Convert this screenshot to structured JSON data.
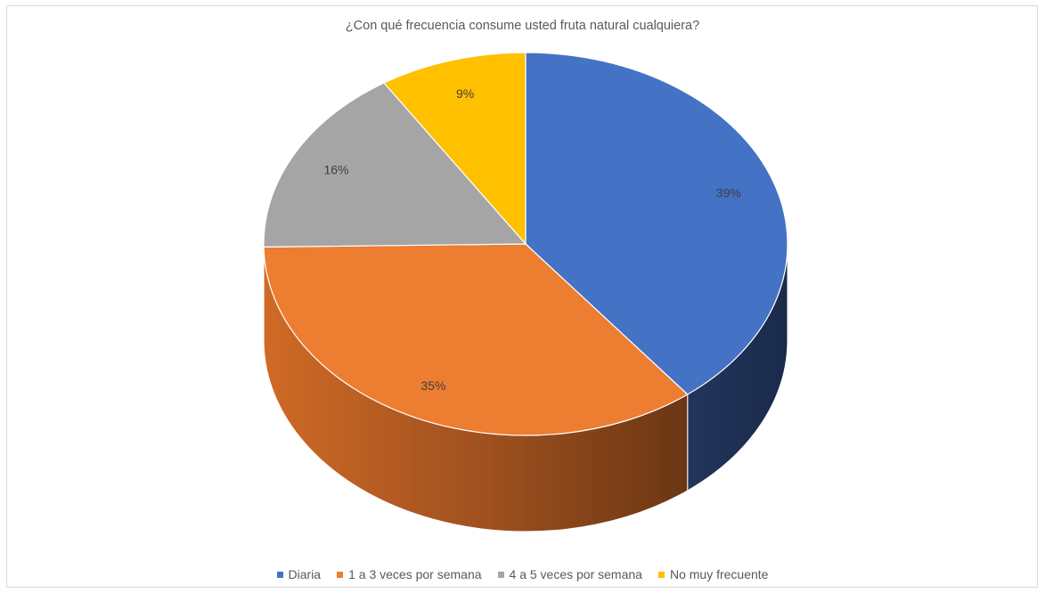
{
  "chart_data": {
    "type": "pie",
    "title": "¿Con qué frecuencia consume usted fruta natural cualquiera?",
    "categories": [
      "Diaria",
      "1 a 3 veces por semana",
      "4 a 5 veces por semana",
      "No muy frecuente"
    ],
    "values": [
      39,
      35,
      16,
      9
    ],
    "value_labels": [
      "39%",
      "35%",
      "16%",
      "9%"
    ],
    "colors": [
      "#4472c4",
      "#ed7d31",
      "#a5a5a5",
      "#ffc000"
    ],
    "style": "3d",
    "legend_position": "bottom"
  }
}
